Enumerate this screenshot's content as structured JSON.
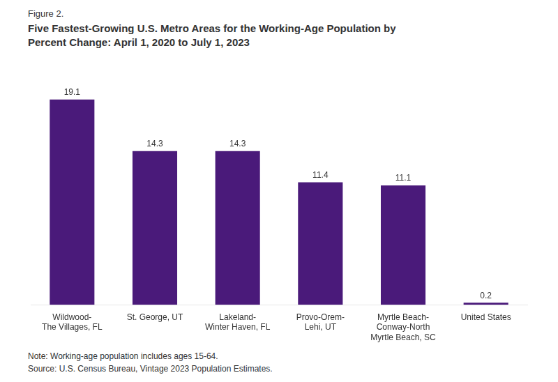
{
  "chart_data": {
    "type": "bar",
    "subtitle": "Figure 2.",
    "title": "Five Fastest-Growing U.S. Metro Areas for the Working-Age Population by\nPercent Change: April 1, 2020 to July 1, 2023",
    "categories": [
      "Wildwood-\nThe Villages, FL",
      "St. George, UT",
      "Lakeland-\nWinter Haven, FL",
      "Provo-Orem-\nLehi, UT",
      "Myrtle Beach-\nConway-North\nMyrtle Beach, SC",
      "United States"
    ],
    "values": [
      19.1,
      14.3,
      14.3,
      11.4,
      11.1,
      0.2
    ],
    "color": "#4a1a7a",
    "ylim": [
      0,
      22
    ],
    "grid": false,
    "data_labels": true,
    "tick_labels": "x",
    "annotations": [
      "Note: Working-age population includes ages 15-64.\nSource: U.S. Census Bureau, Vintage 2023 Population Estimates."
    ]
  }
}
